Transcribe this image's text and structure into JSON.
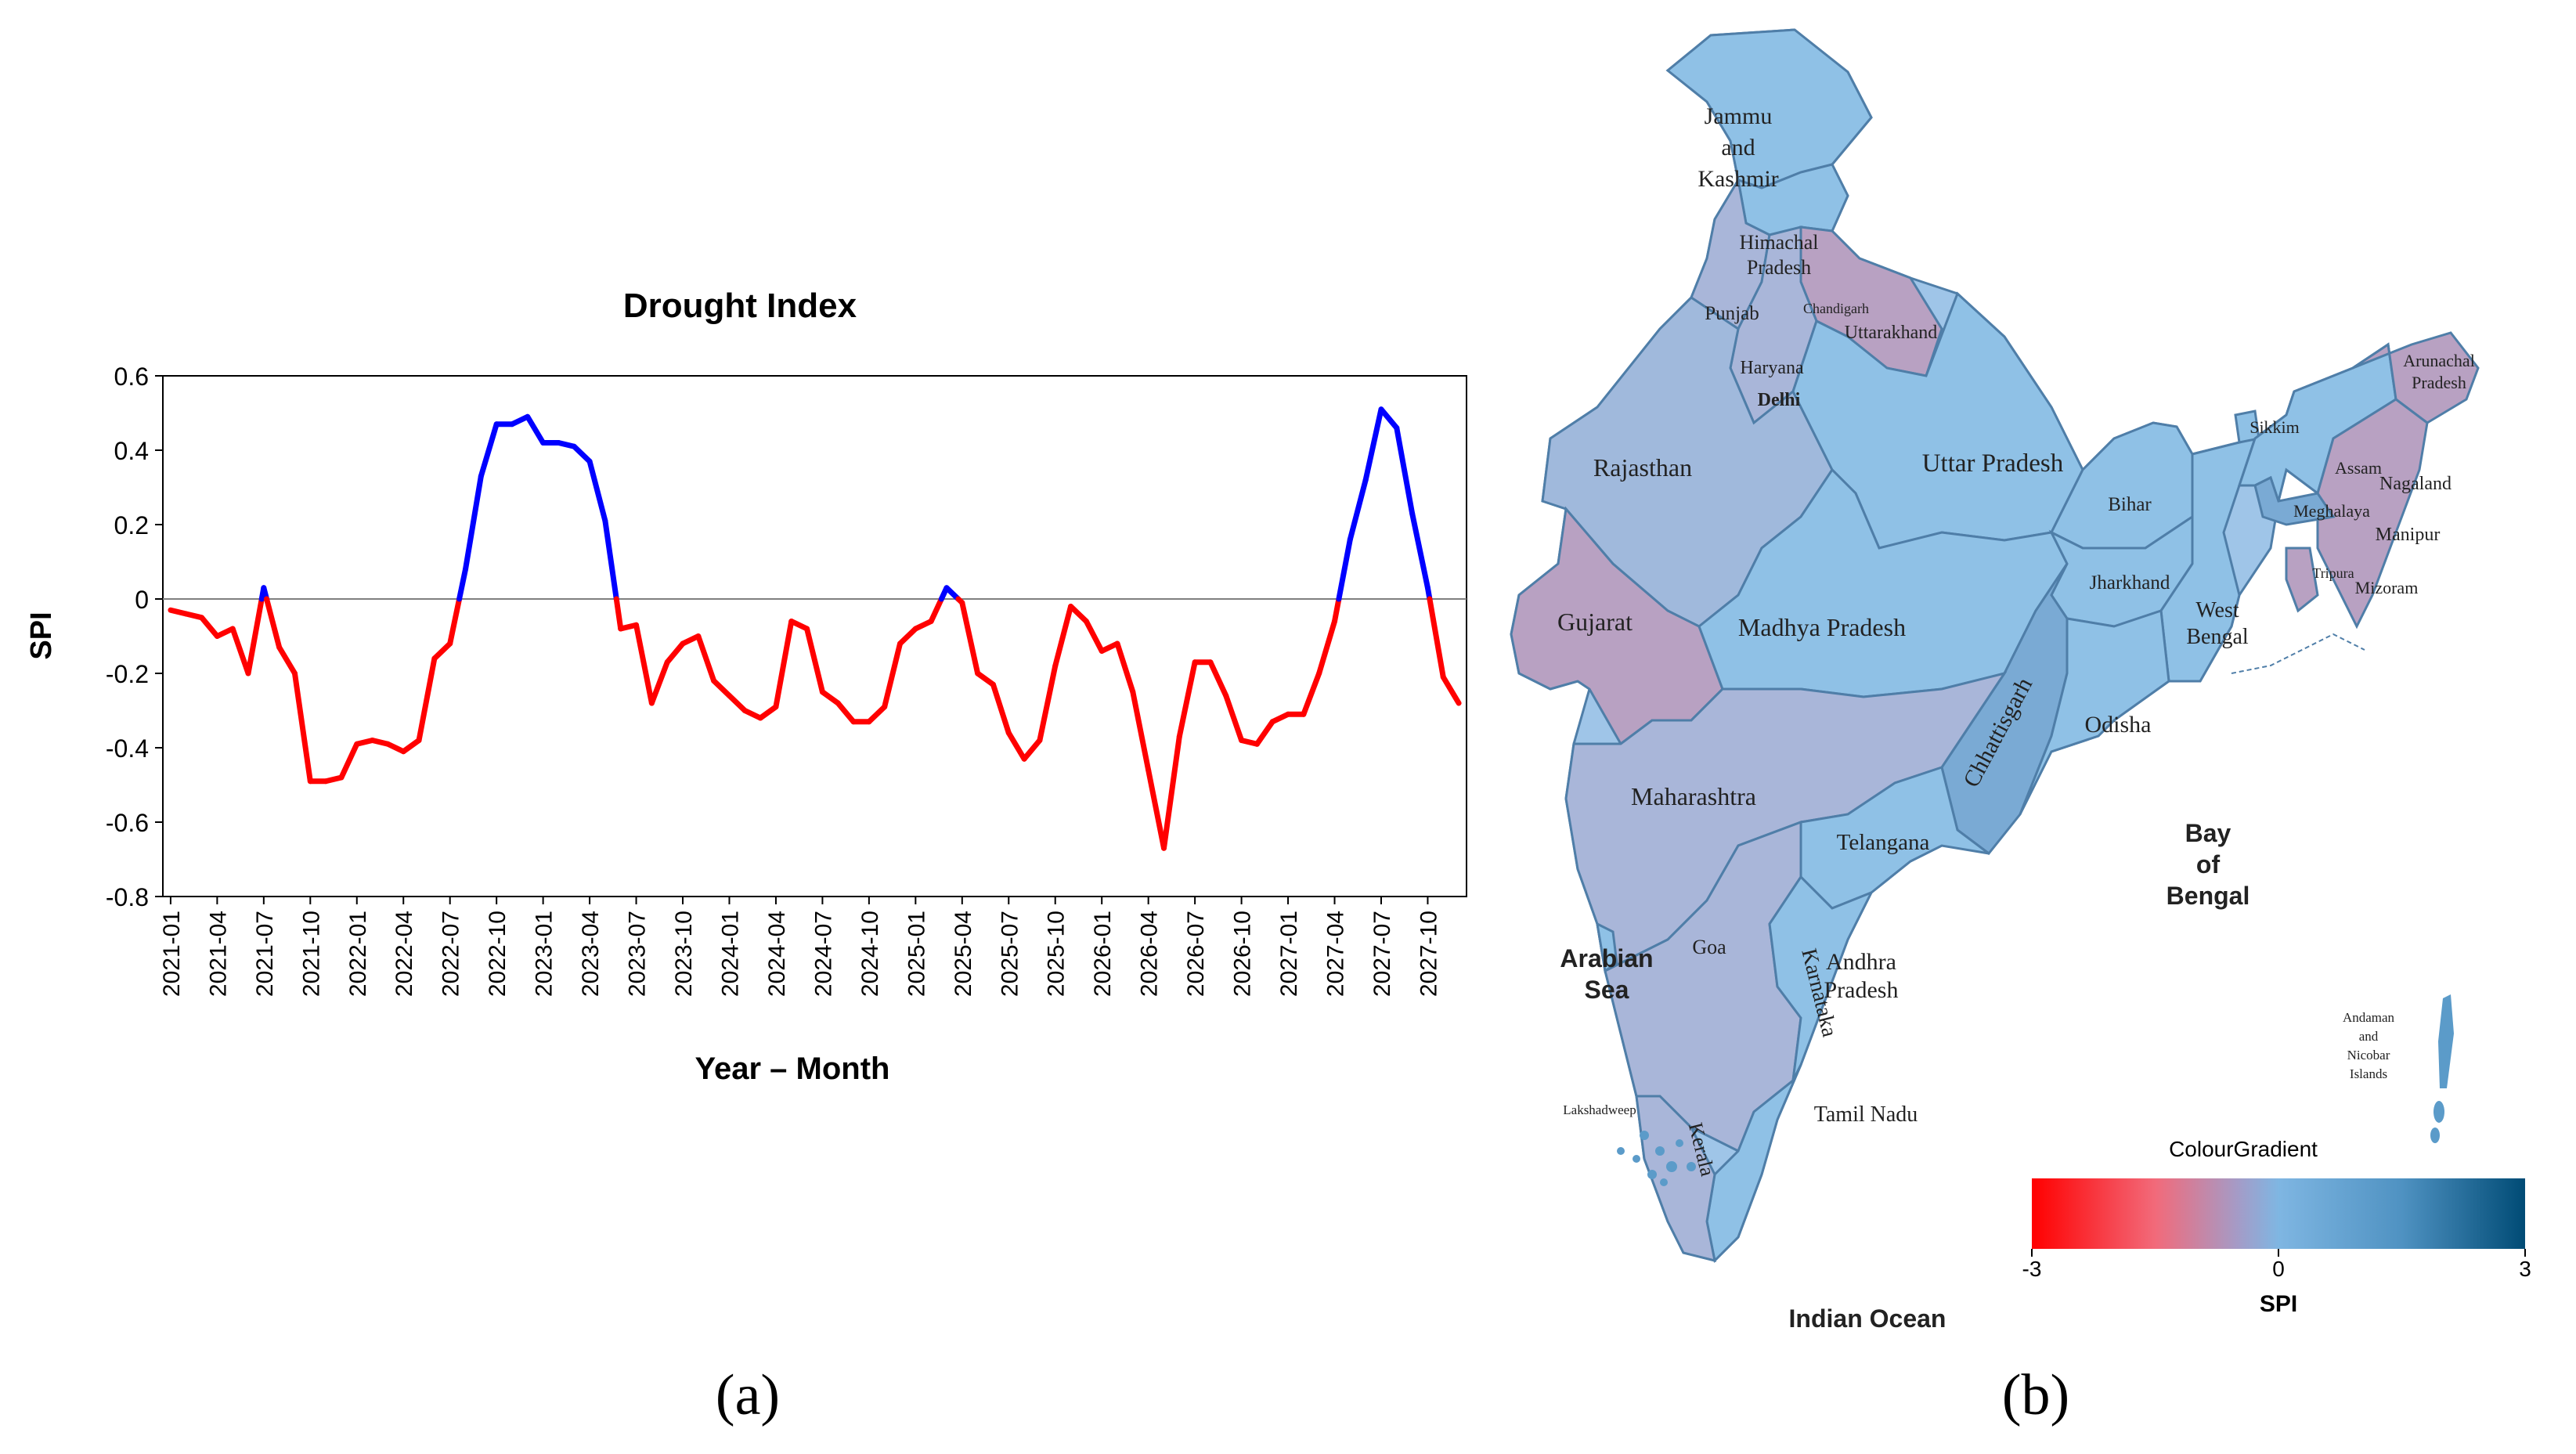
{
  "chart_data": {
    "type": "line",
    "title": "Drought Index",
    "xlabel": "Year – Month",
    "ylabel": "SPI",
    "ylim": [
      -0.8,
      0.6
    ],
    "ytick_labels": [
      "0.6",
      "0.4",
      "0.2",
      "0",
      "-0.2",
      "-0.4",
      "-0.6",
      "-0.8"
    ],
    "x_tick_labels": [
      "2021-01",
      "2021-04",
      "2021-07",
      "2021-10",
      "2022-01",
      "2022-04",
      "2022-07",
      "2022-10",
      "2023-01",
      "2023-04",
      "2023-07",
      "2023-10",
      "2024-01",
      "2024-04",
      "2024-07",
      "2024-10",
      "2025-01",
      "2025-04",
      "2025-07",
      "2025-10",
      "2026-01",
      "2026-04",
      "2026-07",
      "2026-10",
      "2027-01",
      "2027-04",
      "2027-07",
      "2027-10"
    ],
    "threshold": 0,
    "colors": {
      "negative": "#ff0000",
      "positive": "#0000ff",
      "axis": "#000000",
      "zero_line": "#7f7f7f"
    },
    "series": [
      {
        "name": "SPI",
        "values": [
          -0.03,
          -0.04,
          -0.05,
          -0.1,
          -0.08,
          -0.2,
          0.03,
          -0.13,
          -0.2,
          -0.49,
          -0.49,
          -0.48,
          -0.39,
          -0.38,
          -0.39,
          -0.41,
          -0.38,
          -0.16,
          -0.12,
          0.08,
          0.33,
          0.47,
          0.47,
          0.49,
          0.42,
          0.42,
          0.41,
          0.37,
          0.21,
          -0.08,
          -0.07,
          -0.28,
          -0.17,
          -0.12,
          -0.1,
          -0.22,
          -0.26,
          -0.3,
          -0.32,
          -0.29,
          -0.06,
          -0.08,
          -0.25,
          -0.28,
          -0.33,
          -0.33,
          -0.29,
          -0.12,
          -0.08,
          -0.06,
          0.03,
          -0.01,
          -0.2,
          -0.23,
          -0.36,
          -0.43,
          -0.38,
          -0.18,
          -0.02,
          -0.06,
          -0.14,
          -0.12,
          -0.25,
          -0.46,
          -0.67,
          -0.37,
          -0.17,
          -0.17,
          -0.26,
          -0.38,
          -0.39,
          -0.33,
          -0.31,
          -0.31,
          -0.2,
          -0.06,
          0.16,
          0.32,
          0.51,
          0.46,
          0.23,
          0.03,
          -0.21,
          -0.28
        ]
      }
    ]
  },
  "map": {
    "regions": [
      {
        "name": "Jammu and Kashmir",
        "lines": [
          "Jammu",
          "and",
          "Kashmir"
        ],
        "spi": 0.5
      },
      {
        "name": "Himachal Pradesh",
        "lines": [
          "Himachal",
          "Pradesh"
        ],
        "spi": 0.6
      },
      {
        "name": "Punjab",
        "lines": [
          "Punjab"
        ],
        "spi": -0.2
      },
      {
        "name": "Chandigarh",
        "lines": [
          "Chandigarh"
        ],
        "spi": -0.2
      },
      {
        "name": "Uttarakhand",
        "lines": [
          "Uttarakhand"
        ],
        "spi": -0.7
      },
      {
        "name": "Haryana",
        "lines": [
          "Haryana"
        ],
        "spi": -0.2
      },
      {
        "name": "Delhi",
        "lines": [
          "Delhi"
        ],
        "spi": -0.2
      },
      {
        "name": "Rajasthan",
        "lines": [
          "Rajasthan"
        ],
        "spi": 0.1
      },
      {
        "name": "Uttar Pradesh",
        "lines": [
          "Uttar Pradesh"
        ],
        "spi": 0.6
      },
      {
        "name": "Bihar",
        "lines": [
          "Bihar"
        ],
        "spi": 0.6
      },
      {
        "name": "Sikkim",
        "lines": [
          "Sikkim"
        ],
        "spi": 0.6
      },
      {
        "name": "Arunachal Pradesh",
        "lines": [
          "Arunachal",
          "Pradesh"
        ],
        "spi": -0.7
      },
      {
        "name": "Assam",
        "lines": [
          "Assam"
        ],
        "spi": 0.6
      },
      {
        "name": "Nagaland",
        "lines": [
          "Nagaland"
        ],
        "spi": -0.3
      },
      {
        "name": "Meghalaya",
        "lines": [
          "Meghalaya"
        ],
        "spi": 0.9
      },
      {
        "name": "Manipur",
        "lines": [
          "Manipur"
        ],
        "spi": -0.3
      },
      {
        "name": "Tripura",
        "lines": [
          "Tripura"
        ],
        "spi": -0.3
      },
      {
        "name": "Mizoram",
        "lines": [
          "Mizoram"
        ],
        "spi": -0.3
      },
      {
        "name": "Gujarat",
        "lines": [
          "Gujarat"
        ],
        "spi": -0.7
      },
      {
        "name": "Madhya Pradesh",
        "lines": [
          "Madhya Pradesh"
        ],
        "spi": 0.6
      },
      {
        "name": "Jharkhand",
        "lines": [
          "Jharkhand"
        ],
        "spi": 0.6
      },
      {
        "name": "West Bengal",
        "lines": [
          "West",
          "Bengal"
        ],
        "spi": 0.6
      },
      {
        "name": "Chhattisgarh",
        "lines": [
          "Chhattisgarh"
        ],
        "spi": 0.9
      },
      {
        "name": "Odisha",
        "lines": [
          "Odisha"
        ],
        "spi": 0.6
      },
      {
        "name": "Maharashtra",
        "lines": [
          "Maharashtra"
        ],
        "spi": -0.2
      },
      {
        "name": "Telangana",
        "lines": [
          "Telangana"
        ],
        "spi": 0.6
      },
      {
        "name": "Goa",
        "lines": [
          "Goa"
        ],
        "spi": 0.6
      },
      {
        "name": "Karnataka",
        "lines": [
          "Karnataka"
        ],
        "spi": -0.3
      },
      {
        "name": "Andhra Pradesh",
        "lines": [
          "Andhra",
          "Pradesh"
        ],
        "spi": 0.6
      },
      {
        "name": "Tamil Nadu",
        "lines": [
          "Tamil Nadu"
        ],
        "spi": 0.6
      },
      {
        "name": "Kerala",
        "lines": [
          "Kerala"
        ],
        "spi": -0.3
      },
      {
        "name": "Lakshadweep",
        "lines": [
          "Lakshadweep"
        ],
        "spi": 0.9
      },
      {
        "name": "Andaman and Nicobar Islands",
        "lines": [
          "Andaman",
          "and",
          "Nicobar",
          "Islands"
        ],
        "spi": 0.9
      }
    ],
    "water_labels": {
      "arabian_sea": [
        "Arabian",
        "Sea"
      ],
      "bay_of_bengal": [
        "Bay",
        "of",
        "Bengal"
      ],
      "indian_ocean": "Indian Ocean"
    },
    "legend": {
      "title": "ColourGradient",
      "min_label": "-3",
      "mid_label": "0",
      "max_label": "3",
      "axis_label": "SPI",
      "stops": [
        "#ff0000",
        "#f26a7a",
        "#a39cc8",
        "#7fb6e2",
        "#4f92c2",
        "#004b75"
      ]
    },
    "colors": {
      "negative": "#b8a1c2",
      "near_zero": "#a0b9dc",
      "positive": "#8fc1e6",
      "more_positive": "#7aaad4",
      "border": "#4f7ea8"
    }
  },
  "panel_labels": {
    "a": "(a)",
    "b": "(b)"
  }
}
